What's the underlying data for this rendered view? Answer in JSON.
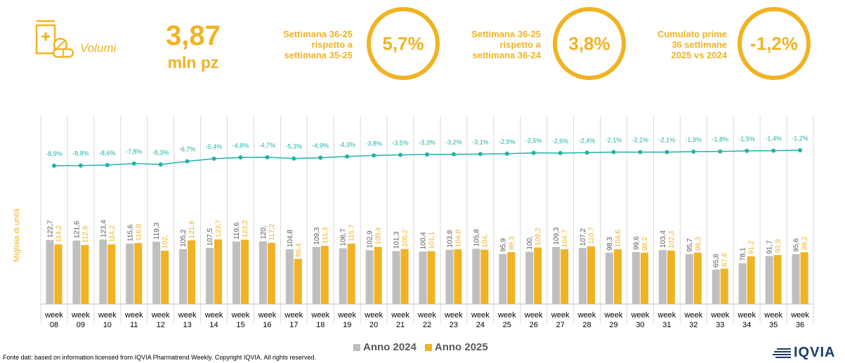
{
  "header": {
    "volumes_label": "Volumi",
    "volume_value": "3,87",
    "volume_unit": "mln pz",
    "kpis": [
      {
        "text_lines": [
          "Settimana 36-25",
          "rispetto a",
          "settimana 35-25"
        ],
        "value": "5,7%"
      },
      {
        "text_lines": [
          "Settimana 36-25",
          "rispetto a",
          "settimana 36-24"
        ],
        "value": "3,8%"
      },
      {
        "text_lines": [
          "Cumulato prime",
          "36 settimane",
          "2025 vs 2024"
        ],
        "value": "-1,2%"
      }
    ]
  },
  "colors": {
    "accent": "#F0B323",
    "series_2024": "#BFBFBF",
    "series_2025": "#F0B323",
    "line": "#1FB3A6",
    "logo": "#1B3A6B"
  },
  "chart_data": {
    "type": "bar",
    "ylabel": "Migliaia di unità",
    "categories": [
      "week 08",
      "week 09",
      "week 10",
      "week 11",
      "week 12",
      "week 13",
      "week 14",
      "week 15",
      "week 16",
      "week 17",
      "week 18",
      "week 19",
      "week 20",
      "week 21",
      "week 22",
      "week 23",
      "week 24",
      "week 25",
      "week 26",
      "week 27",
      "week 28",
      "week 29",
      "week 30",
      "week 31",
      "week 32",
      "week 33",
      "week 34",
      "week 35",
      "week 36"
    ],
    "series": [
      {
        "name": "Anno 2024",
        "values": [
          122.7,
          121.6,
          123.4,
          115.6,
          119.3,
          105.2,
          107.5,
          119.6,
          120,
          104.8,
          109.3,
          106.7,
          102.9,
          101.3,
          100.4,
          103.8,
          105.8,
          95.9,
          100,
          109.3,
          107.2,
          98.3,
          99.6,
          103.4,
          95.7,
          65.8,
          78.1,
          91.7,
          95.6
        ],
        "labels": [
          "122,7",
          "121,6",
          "123,4",
          "115,6",
          "119,3",
          "105,2",
          "107,5",
          "119,6",
          "120,",
          "104,8",
          "109,3",
          "106,7",
          "102,9",
          "101,3",
          "100,4",
          "103,8",
          "105,8",
          "95,9",
          "100,",
          "109,3",
          "107,2",
          "98,3",
          "99,6",
          "103,4",
          "95,7",
          "65,8",
          "78,1",
          "91,7",
          "95,6"
        ]
      },
      {
        "name": "Anno 2025",
        "values": [
          114.2,
          112.9,
          114.2,
          116.8,
          102,
          121.8,
          123.7,
          123.2,
          117.2,
          86.4,
          111.3,
          115.7,
          109.4,
          105.2,
          101.1,
          104.8,
          104,
          99.3,
          108.2,
          104.7,
          110.7,
          104.6,
          98.2,
          102.3,
          98.3,
          67.6,
          91.2,
          93.9,
          99.2
        ],
        "labels": [
          "114,2",
          "112,9",
          "114,2",
          "116,8",
          "102,",
          "121,8",
          "123,7",
          "123,2",
          "117,2",
          "86,4",
          "111,3",
          "115,7",
          "109,4",
          "105,2",
          "101,1",
          "104,8",
          "104,",
          "99,3",
          "108,2",
          "104,7",
          "110,7",
          "104,6",
          "98,2",
          "102,3",
          "98,3",
          "67,6",
          "91,2",
          "93,9",
          "99,2"
        ]
      }
    ],
    "cumulative_change": {
      "values": [
        -8.9,
        -8.8,
        -8.6,
        -7.8,
        -8.3,
        -6.7,
        -5.4,
        -4.8,
        -4.7,
        -5.3,
        -4.9,
        -4.3,
        -3.8,
        -3.5,
        -3.3,
        -3.2,
        -3.1,
        -2.9,
        -2.5,
        -2.6,
        -2.4,
        -2.1,
        -2.1,
        -2.1,
        -1.9,
        -1.8,
        -1.5,
        -1.4,
        -1.2
      ],
      "labels": [
        "-8,9%",
        "-8,8%",
        "-8,6%",
        "-7,8%",
        "-8,3%",
        "-6,7%",
        "-5,4%",
        "-4,8%",
        "-4,7%",
        "-5,3%",
        "-4,9%",
        "-4,3%",
        "-3,8%",
        "-3,5%",
        "-3,3%",
        "-3,2%",
        "-3,1%",
        "-2,9%",
        "-2,5%",
        "-2,6%",
        "-2,4%",
        "-2,1%",
        "-2,1%",
        "-2,1%",
        "-1,9%",
        "-1,8%",
        "-1,5%",
        "-1,4%",
        "-1,2%"
      ]
    },
    "legend_position": "bottom"
  },
  "footer": {
    "source": "Fonte dati: based on information licensed from IQVIA Pharmatrend Weekly. Copyright IQVIA. All rights reserved.",
    "logo_text": "IQVIA"
  }
}
